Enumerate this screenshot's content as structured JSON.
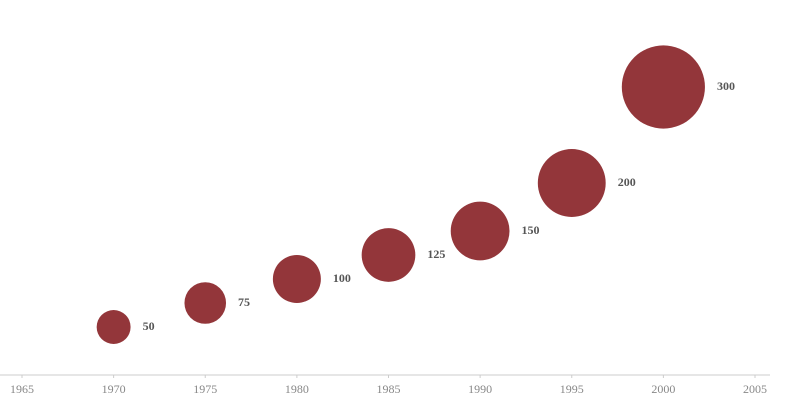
{
  "chart_data": {
    "type": "bubble",
    "series": [
      {
        "color": "#93363a",
        "x": [
          1970,
          1975,
          1980,
          1985,
          1990,
          1995,
          2000
        ],
        "values": [
          50,
          75,
          100,
          125,
          150,
          200,
          300
        ]
      }
    ],
    "xlim": [
      1965,
      2005
    ],
    "xticks": [
      1965,
      1970,
      1975,
      1980,
      1985,
      1990,
      1995,
      2000,
      2005
    ],
    "ylim": [
      0,
      350
    ]
  }
}
